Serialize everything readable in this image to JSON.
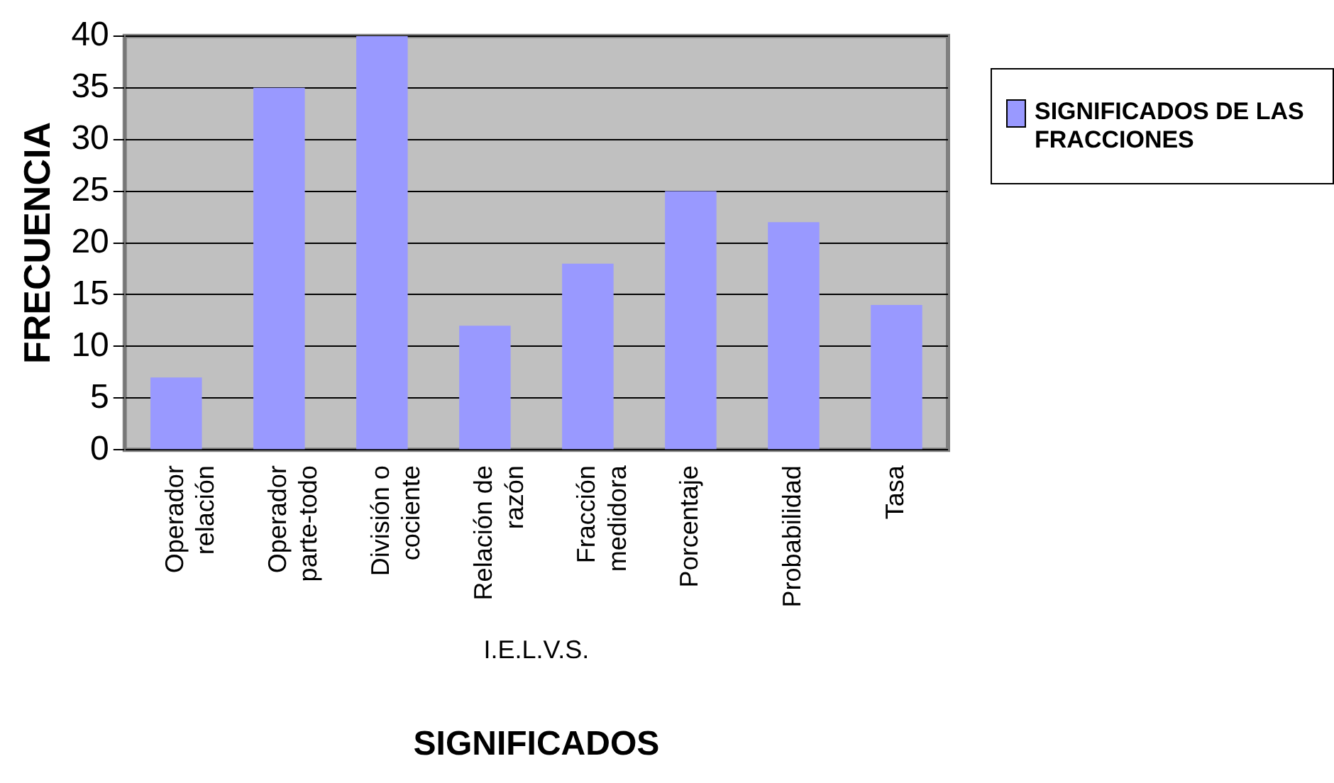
{
  "chart_data": {
    "type": "bar",
    "xlabel": "SIGNIFICADOS",
    "ylabel": "FRECUENCIA",
    "categories": [
      "Operador relación",
      "Operador parte-todo",
      "División o cociente",
      "Relación de razón",
      "Fracción medidora",
      "Porcentaje",
      "Probabilidad",
      "Tasa"
    ],
    "series": [
      {
        "name": "SIGNIFICADOS DE LAS FRACCIONES",
        "color": "#9999ff",
        "values": [
          7,
          35,
          40,
          12,
          18,
          25,
          22,
          14
        ]
      }
    ],
    "ylim": [
      0,
      40
    ],
    "yticks": [
      0,
      5,
      10,
      15,
      20,
      25,
      30,
      35,
      40
    ],
    "grid": "y",
    "legend": "right",
    "annotations": [
      "I.E.L.V.S."
    ]
  }
}
